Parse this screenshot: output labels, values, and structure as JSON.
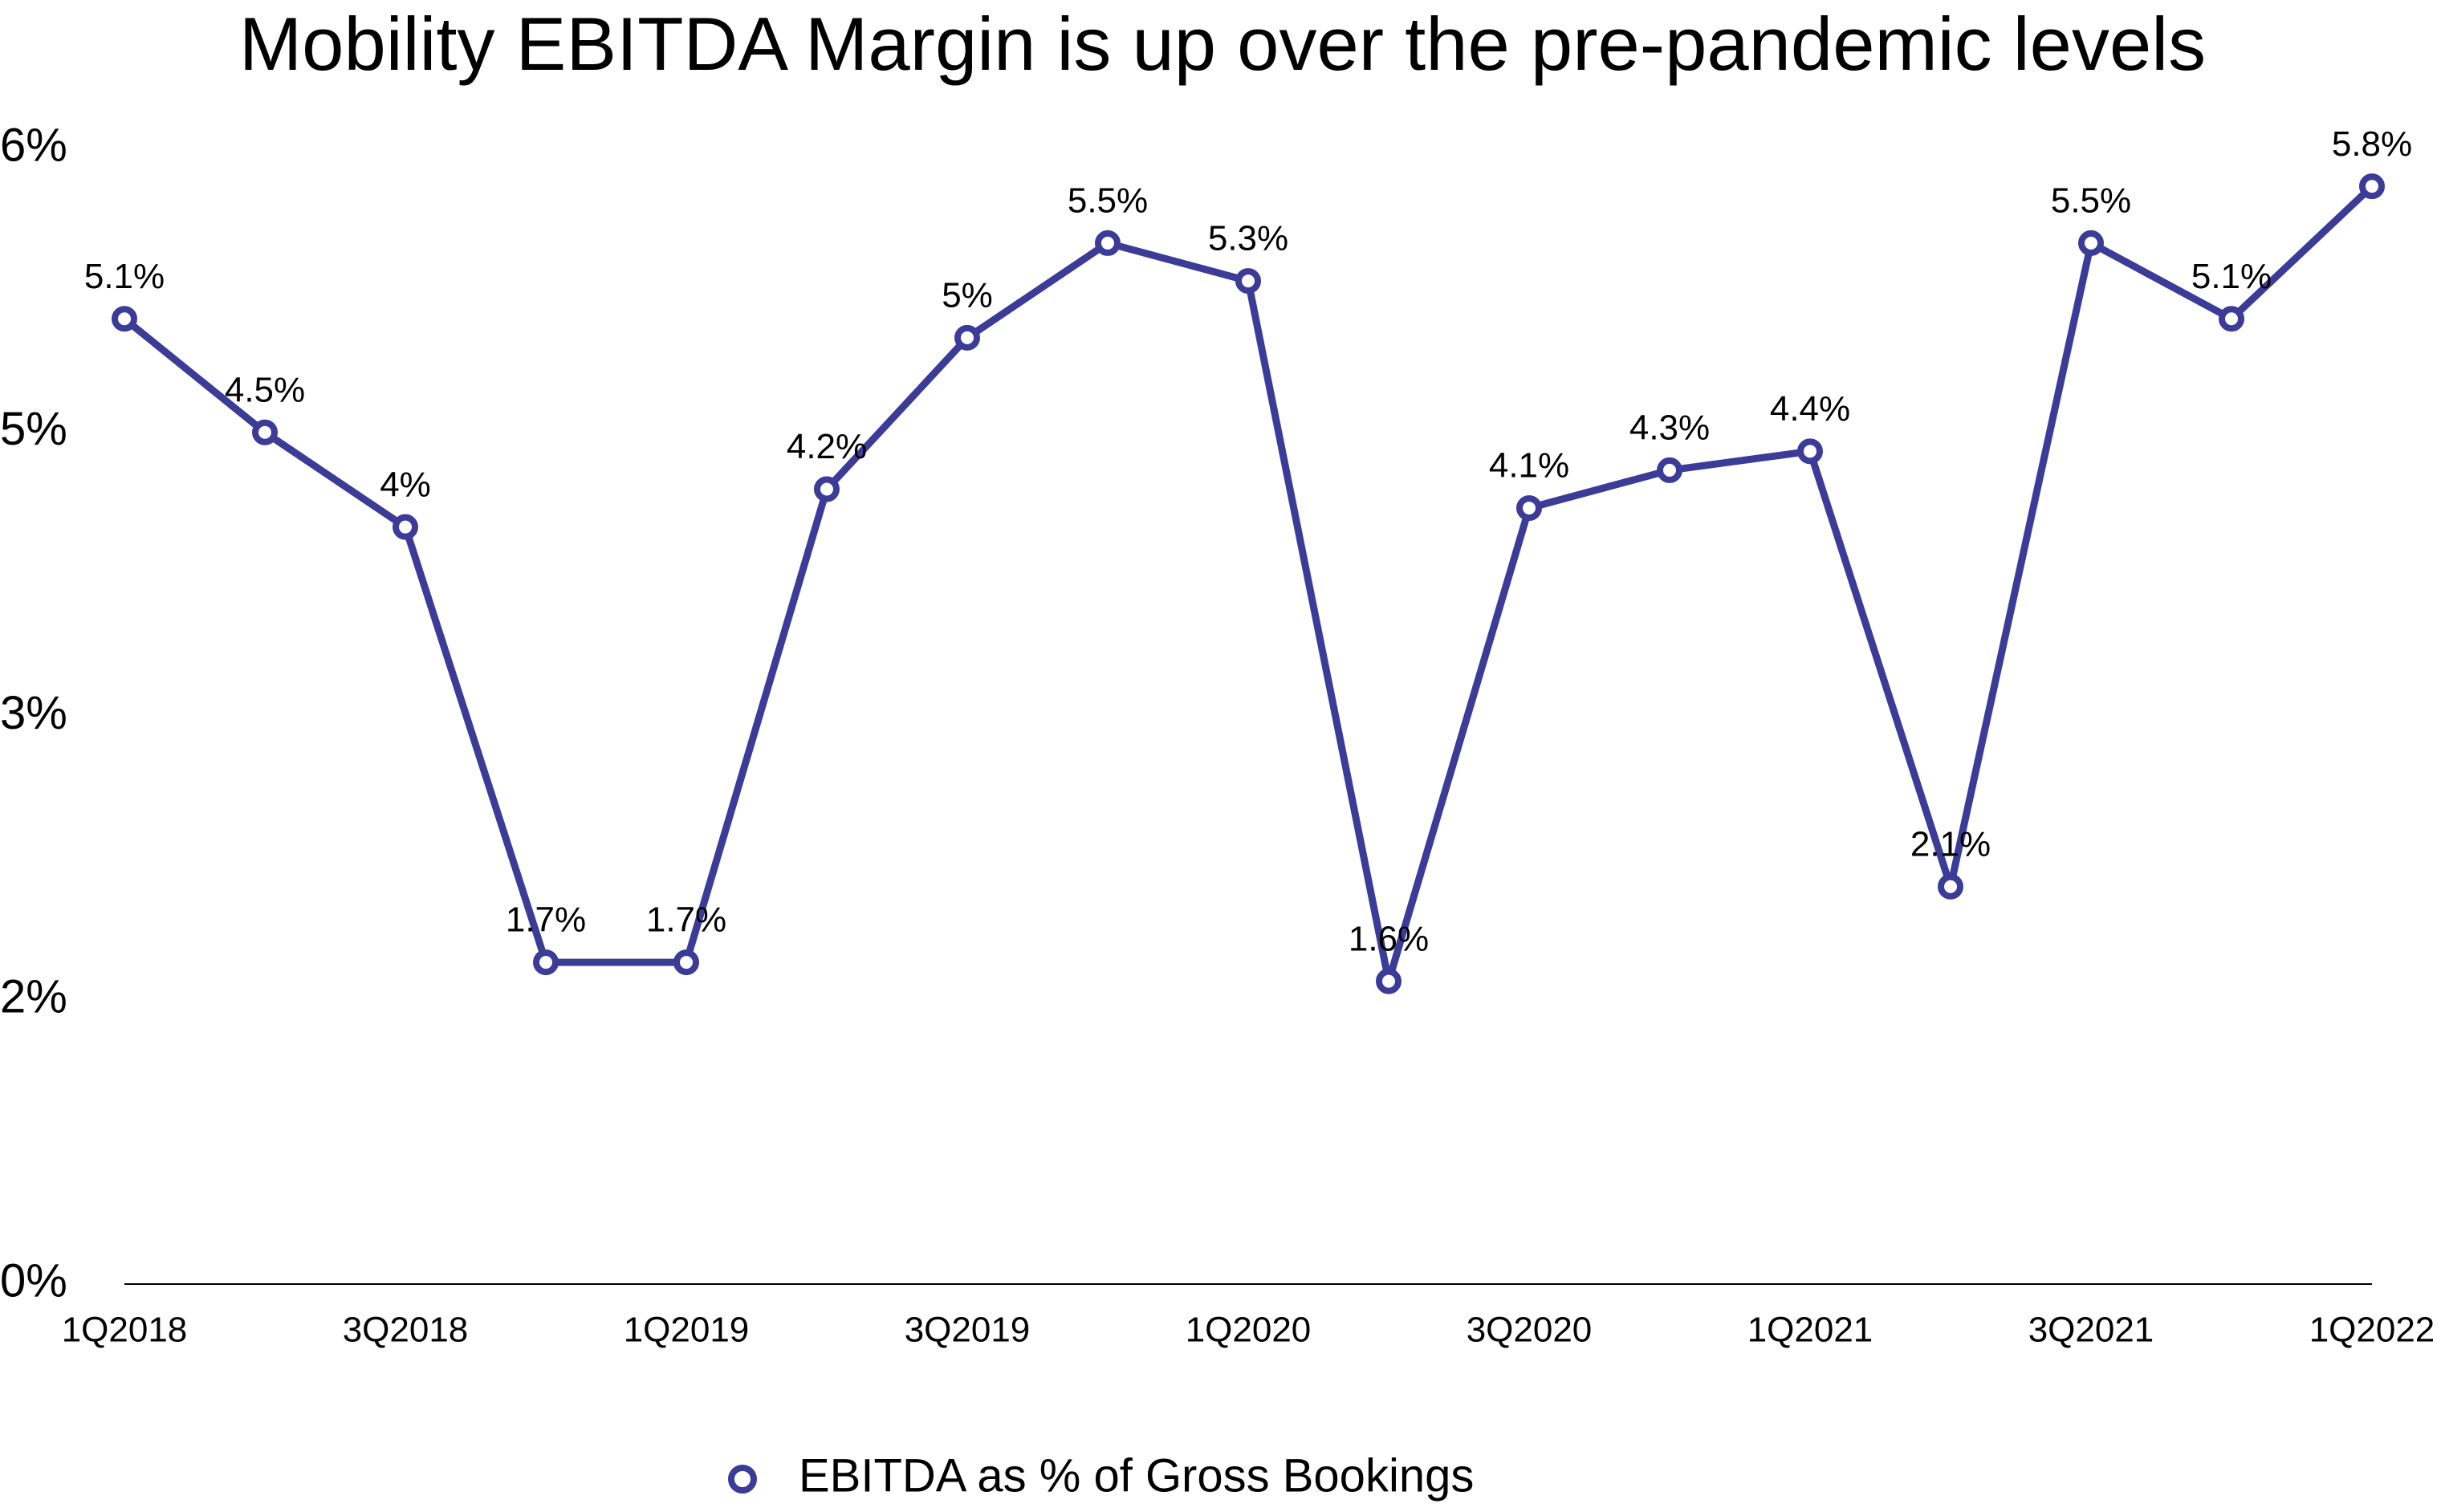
{
  "chart_data": {
    "type": "line",
    "title": "Mobility EBITDA Margin is up over the pre-pandemic levels",
    "categories": [
      "1Q2018",
      null,
      "3Q2018",
      null,
      "1Q2019",
      null,
      "3Q2019",
      null,
      "1Q2020",
      null,
      "3Q2020",
      null,
      "1Q2021",
      null,
      "3Q2021",
      null,
      "1Q2022"
    ],
    "series": [
      {
        "name": "EBITDA as % of Gross Bookings",
        "color": "#3b3b98",
        "values": [
          5.1,
          4.5,
          4.0,
          1.7,
          1.7,
          4.2,
          5.0,
          5.5,
          5.3,
          1.6,
          4.1,
          4.3,
          4.4,
          2.1,
          5.5,
          5.1,
          5.8
        ],
        "value_labels": [
          "5.1%",
          "4.5%",
          "4%",
          "1.7%",
          "1.7%",
          "4.2%",
          "5%",
          "5.5%",
          "5.3%",
          "1.6%",
          "4.1%",
          "4.3%",
          "4.4%",
          "2.1%",
          "5.5%",
          "5.1%",
          "5.8%"
        ]
      }
    ],
    "ylim": [
      0,
      6
    ],
    "yticks": [
      {
        "value": 0,
        "label": "0%"
      },
      {
        "value": 1.5,
        "label": "2%"
      },
      {
        "value": 3,
        "label": "3%"
      },
      {
        "value": 4.5,
        "label": "5%"
      },
      {
        "value": 6,
        "label": "6%"
      }
    ],
    "grid": false,
    "legend": "bottom",
    "title_color": "#c2469f"
  }
}
